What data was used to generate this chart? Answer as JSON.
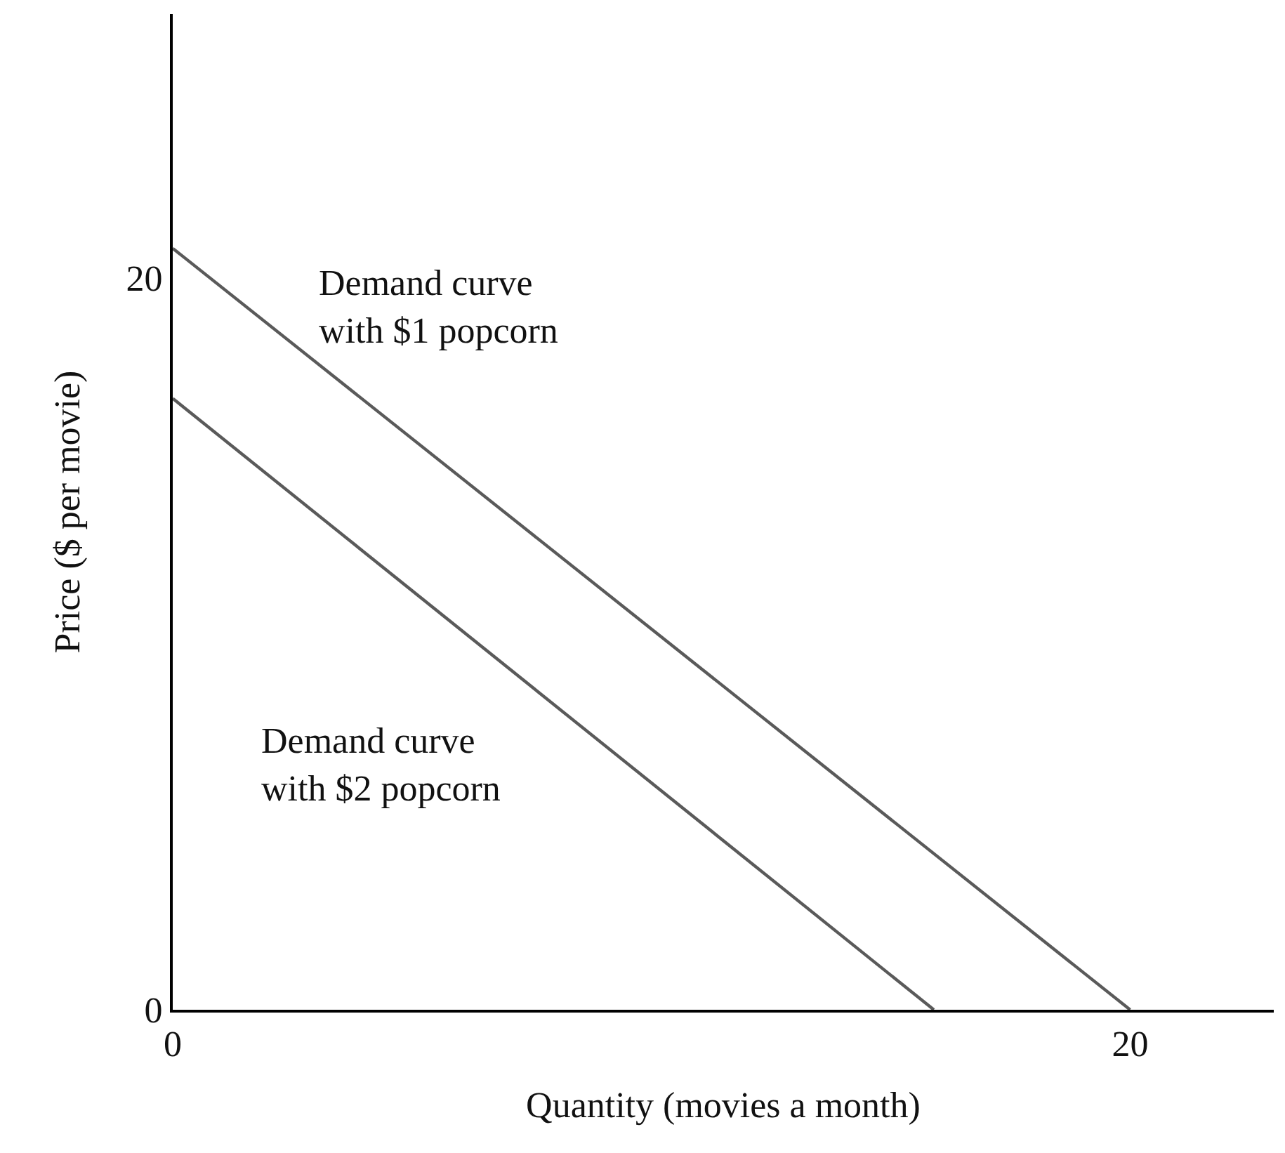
{
  "chart_data": {
    "type": "line",
    "xlabel": "Quantity (movies a month)",
    "ylabel": "Price ($ per movie)",
    "xlim": [
      0,
      23
    ],
    "ylim": [
      0,
      27.2
    ],
    "xticks": [
      0,
      20
    ],
    "yticks": [
      0,
      20
    ],
    "legend": false,
    "marker": "none",
    "line_style": "solid",
    "series": [
      {
        "name": "Demand curve\nwith $1 popcorn",
        "color": "#5a5a5a",
        "x": [
          0,
          20
        ],
        "values": [
          20.8,
          0
        ]
      },
      {
        "name": "Demand curve\nwith $2 popcorn",
        "color": "#5a5a5a",
        "x": [
          0,
          15.9
        ],
        "values": [
          16.7,
          0
        ]
      }
    ]
  }
}
